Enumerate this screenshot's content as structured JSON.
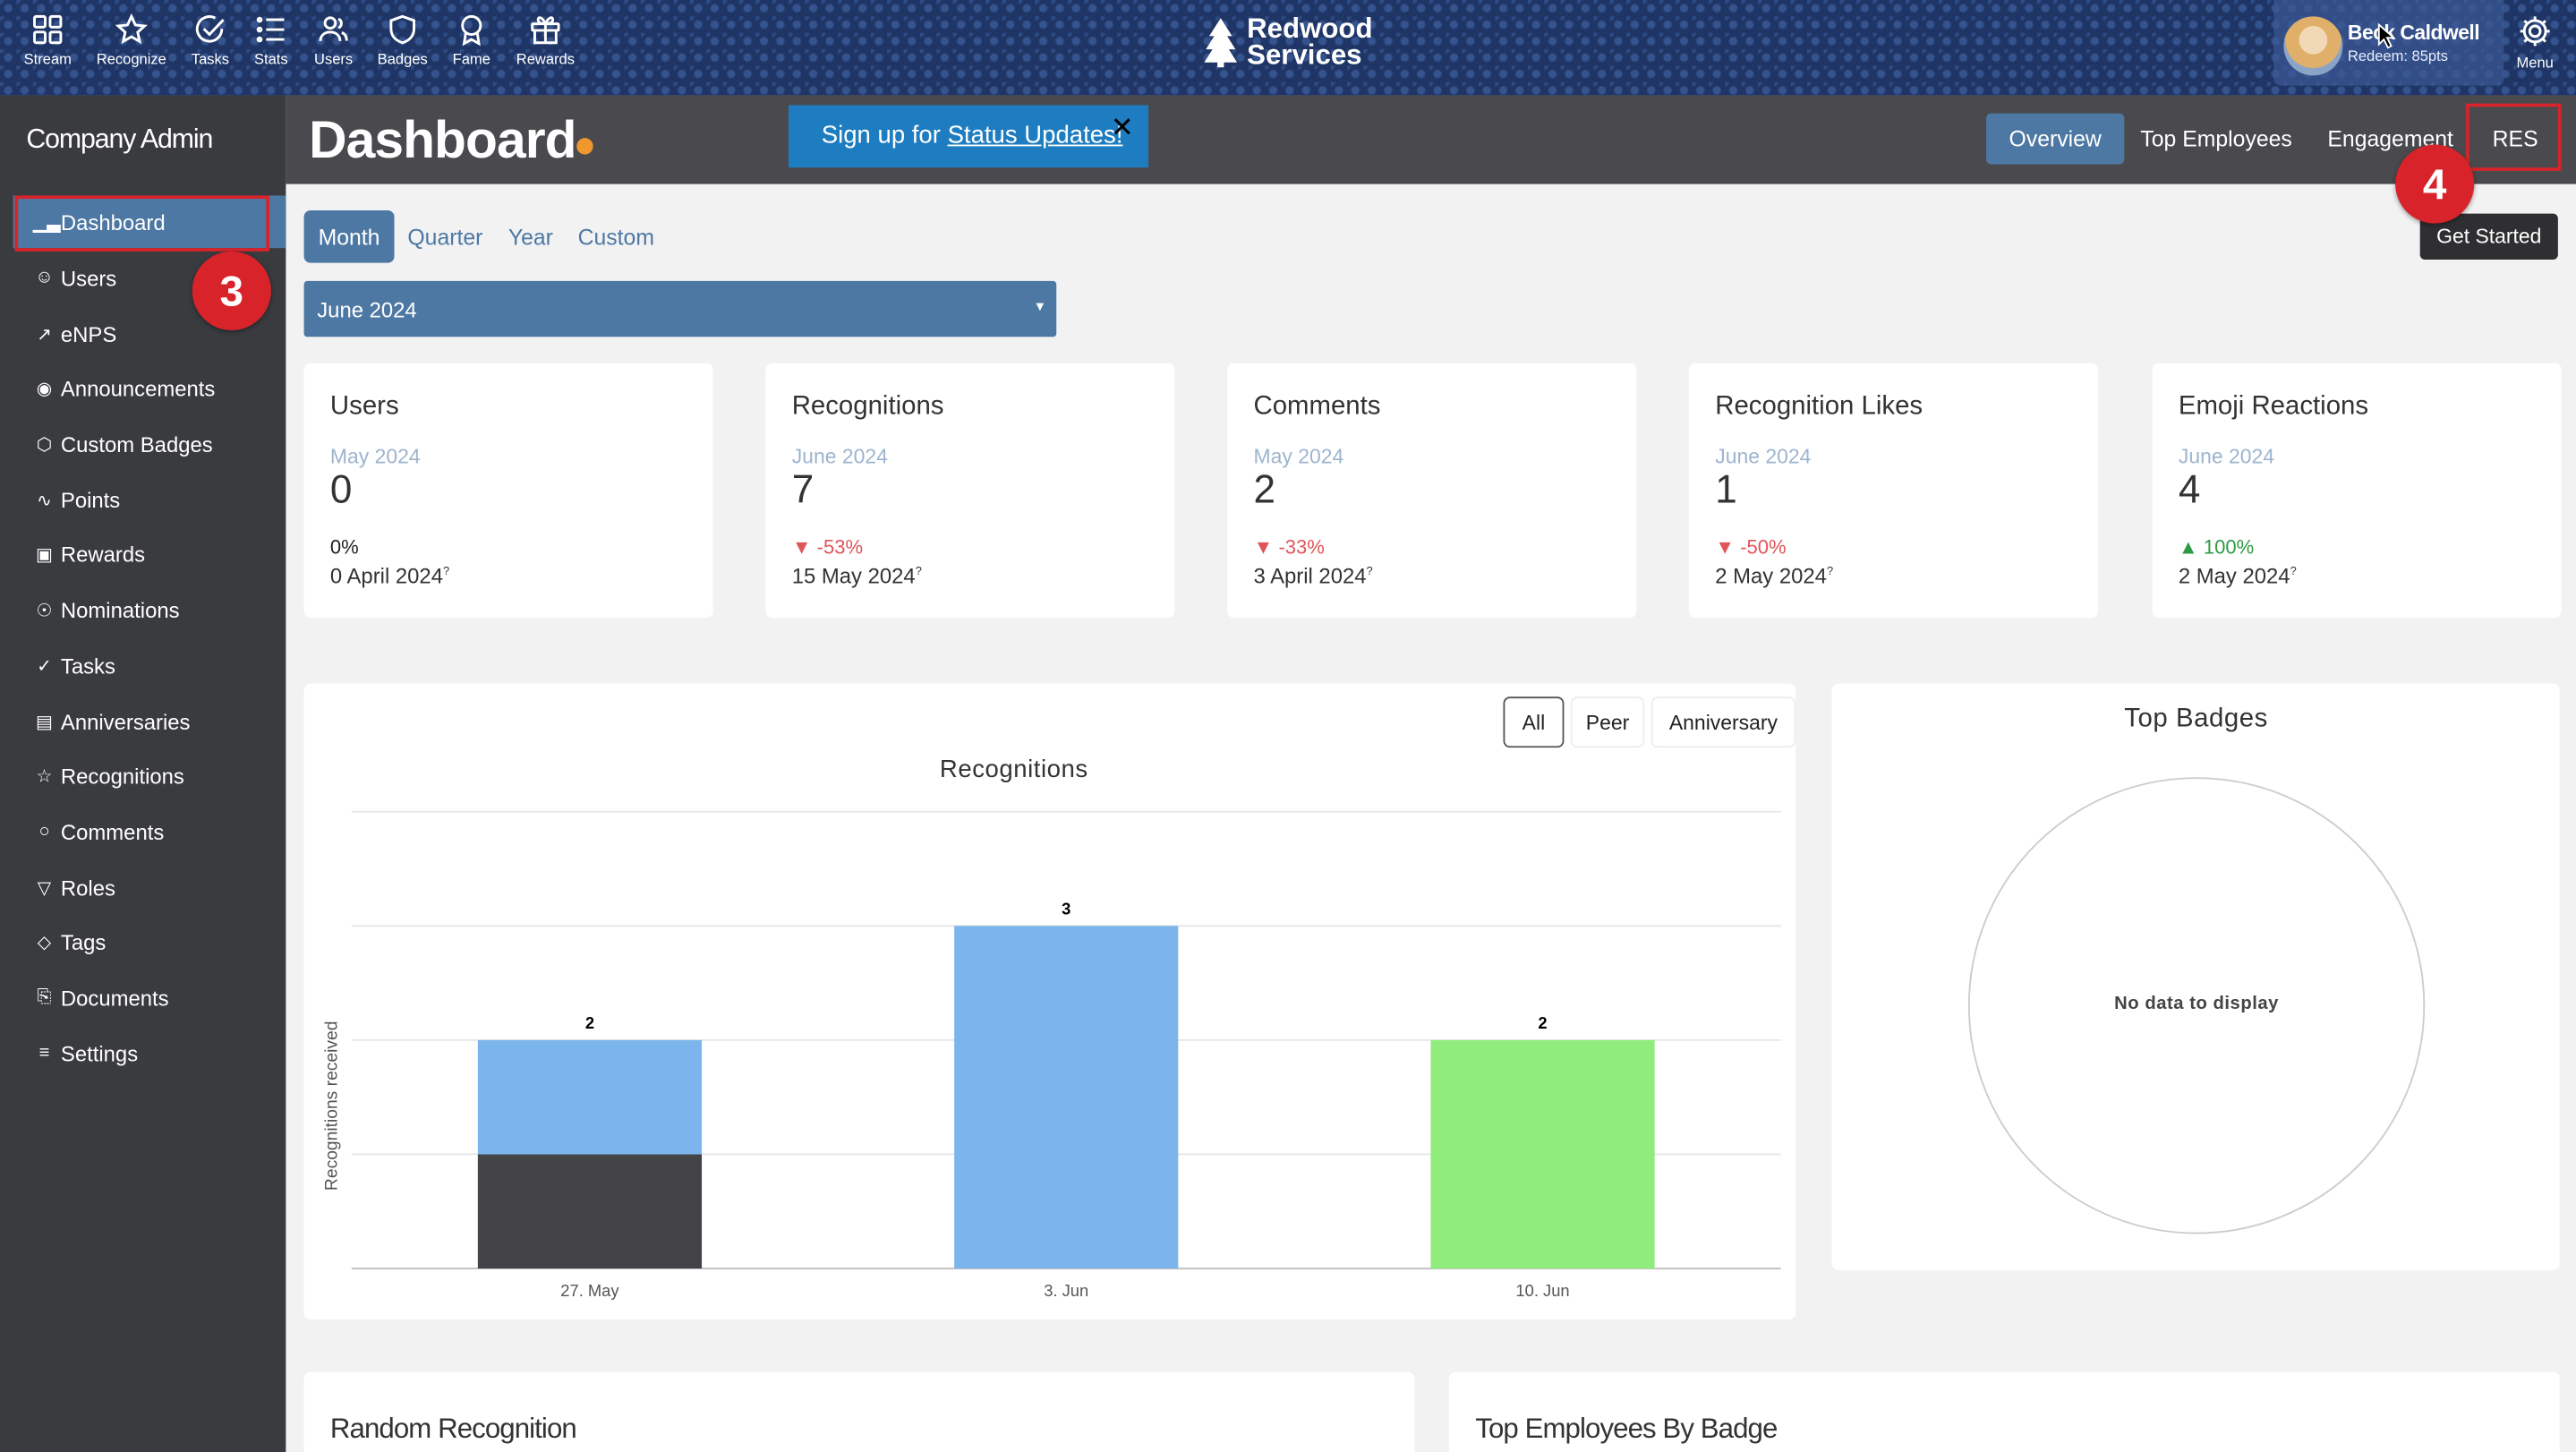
{
  "topnav": {
    "items": [
      {
        "label": "Stream",
        "icon": "grid-icon"
      },
      {
        "label": "Recognize",
        "icon": "star-icon"
      },
      {
        "label": "Tasks",
        "icon": "check-circle-icon"
      },
      {
        "label": "Stats",
        "icon": "list-icon"
      },
      {
        "label": "Users",
        "icon": "users-icon"
      },
      {
        "label": "Badges",
        "icon": "shield-icon"
      },
      {
        "label": "Fame",
        "icon": "ribbon-icon"
      },
      {
        "label": "Rewards",
        "icon": "gift-icon"
      }
    ],
    "brand": {
      "line1": "Redwood",
      "line2": "Services"
    },
    "user": {
      "name": "Beck Caldwell",
      "points": "Redeem: 85pts"
    },
    "menu_label": "Menu"
  },
  "sidebar": {
    "title": "Company Admin",
    "items": [
      {
        "label": "Dashboard",
        "icon": "bar-chart-icon"
      },
      {
        "label": "Users",
        "icon": "user-icon"
      },
      {
        "label": "eNPS",
        "icon": "trend-icon"
      },
      {
        "label": "Announcements",
        "icon": "broadcast-icon"
      },
      {
        "label": "Custom Badges",
        "icon": "shield-icon"
      },
      {
        "label": "Points",
        "icon": "pulse-icon"
      },
      {
        "label": "Rewards",
        "icon": "gift-icon"
      },
      {
        "label": "Nominations",
        "icon": "ribbon-icon"
      },
      {
        "label": "Tasks",
        "icon": "check-circle-icon"
      },
      {
        "label": "Anniversaries",
        "icon": "calendar-icon"
      },
      {
        "label": "Recognitions",
        "icon": "star-icon"
      },
      {
        "label": "Comments",
        "icon": "comment-icon"
      },
      {
        "label": "Roles",
        "icon": "filter-icon"
      },
      {
        "label": "Tags",
        "icon": "tag-icon"
      },
      {
        "label": "Documents",
        "icon": "paperclip-icon"
      },
      {
        "label": "Settings",
        "icon": "sliders-icon"
      }
    ]
  },
  "header": {
    "title": "Dashboard",
    "banner": {
      "prefix": "Sign up for ",
      "link": "Status Updates!"
    },
    "tabs": [
      "Overview",
      "Top Employees",
      "Engagement",
      "RES"
    ]
  },
  "period": {
    "tabs": [
      "Month",
      "Quarter",
      "Year",
      "Custom"
    ],
    "selected": "June 2024",
    "get_started": "Get Started"
  },
  "cards": [
    {
      "title": "Users",
      "period": "May 2024",
      "value": "0",
      "change": "0%",
      "trend": "flat",
      "previous": "0 April 2024",
      "sup": "?"
    },
    {
      "title": "Recognitions",
      "period": "June 2024",
      "value": "7",
      "change": "-53%",
      "trend": "down",
      "previous": "15 May 2024",
      "sup": "?"
    },
    {
      "title": "Comments",
      "period": "May 2024",
      "value": "2",
      "change": "-33%",
      "trend": "down",
      "previous": "3 April 2024",
      "sup": "?"
    },
    {
      "title": "Recognition Likes",
      "period": "June 2024",
      "value": "1",
      "change": "-50%",
      "trend": "down",
      "previous": "2 May 2024",
      "sup": "?"
    },
    {
      "title": "Emoji Reactions",
      "period": "June 2024",
      "value": "4",
      "change": "100%",
      "trend": "up",
      "previous": "2 May 2024",
      "sup": "?"
    }
  ],
  "recognitions_panel": {
    "filter_tabs": [
      "All",
      "Peer",
      "Anniversary"
    ]
  },
  "chart_data": {
    "type": "bar",
    "stacked": true,
    "title": "Recognitions",
    "ylabel": "Recognitions received",
    "xlabel": "",
    "categories": [
      "27. May",
      "3. Jun",
      "10. Jun"
    ],
    "ylim": [
      0,
      4
    ],
    "grid": true,
    "totals": [
      2,
      3,
      2
    ],
    "series": [
      {
        "values": [
          1,
          0,
          0
        ],
        "color": "#434348"
      },
      {
        "values": [
          1,
          3,
          0
        ],
        "color": "#7cb5ec"
      },
      {
        "values": [
          0,
          0,
          2
        ],
        "color": "#90ed7d"
      }
    ]
  },
  "badges_panel": {
    "title": "Top Badges",
    "empty_text": "No data to display"
  },
  "bottom": {
    "left_title": "Random Recognition",
    "right_title": "Top Employees By Badge"
  },
  "annotations": {
    "marker_dashboard": "3",
    "marker_res": "4",
    "color": "#d8232a"
  }
}
